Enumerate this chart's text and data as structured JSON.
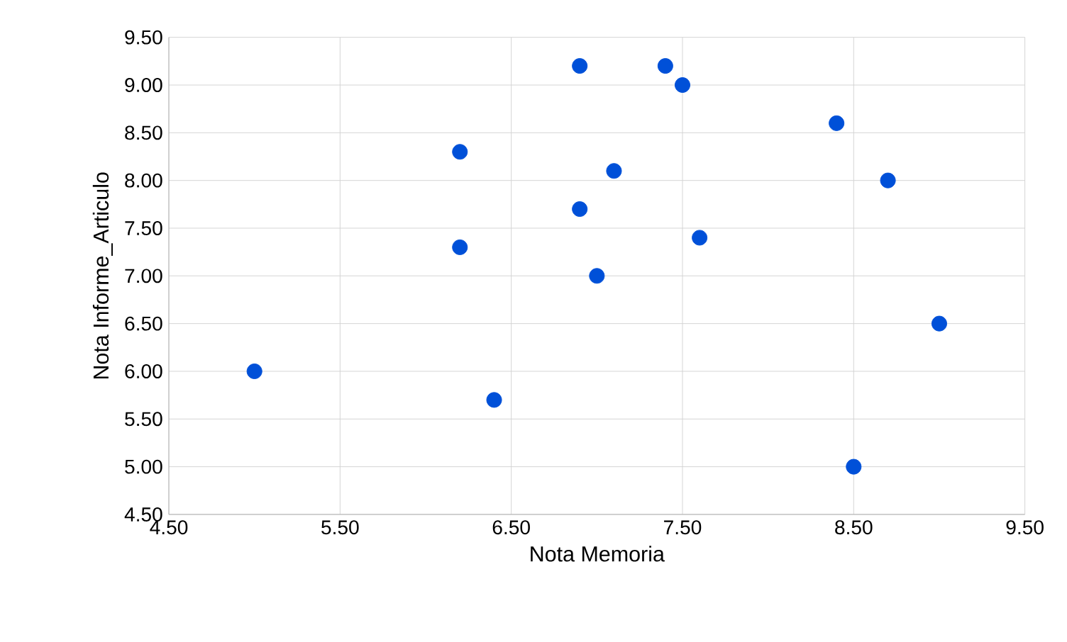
{
  "chart_data": {
    "type": "scatter",
    "xlabel": "Nota Memoria",
    "ylabel": "Nota Informe_Articulo",
    "x": [
      6.9,
      7.4,
      7.5,
      8.4,
      6.2,
      7.1,
      8.7,
      6.9,
      6.2,
      7.6,
      7.0,
      9.0,
      5.0,
      6.4,
      8.5
    ],
    "values": [
      9.2,
      9.2,
      9.0,
      8.6,
      8.3,
      8.1,
      8.0,
      7.7,
      7.3,
      7.4,
      7.0,
      6.5,
      6.0,
      5.7,
      5.0
    ],
    "color": "#0050d8",
    "marker": "circle",
    "grid": true,
    "xlim": [
      4.5,
      9.5
    ],
    "ylim": [
      4.5,
      9.5
    ],
    "xticks": [
      {
        "value": 4.5,
        "label": "4.50"
      },
      {
        "value": 5.5,
        "label": "5.50"
      },
      {
        "value": 6.5,
        "label": "6.50"
      },
      {
        "value": 7.5,
        "label": "7.50"
      },
      {
        "value": 8.5,
        "label": "8.50"
      },
      {
        "value": 9.5,
        "label": "9.50"
      }
    ],
    "yticks": [
      {
        "value": 4.5,
        "label": "4.50"
      },
      {
        "value": 5.0,
        "label": "5.00"
      },
      {
        "value": 5.5,
        "label": "5.50"
      },
      {
        "value": 6.0,
        "label": "6.00"
      },
      {
        "value": 6.5,
        "label": "6.50"
      },
      {
        "value": 7.0,
        "label": "7.00"
      },
      {
        "value": 7.5,
        "label": "7.50"
      },
      {
        "value": 8.0,
        "label": "8.00"
      },
      {
        "value": 8.5,
        "label": "8.50"
      },
      {
        "value": 9.0,
        "label": "9.00"
      },
      {
        "value": 9.5,
        "label": "9.50"
      }
    ]
  }
}
